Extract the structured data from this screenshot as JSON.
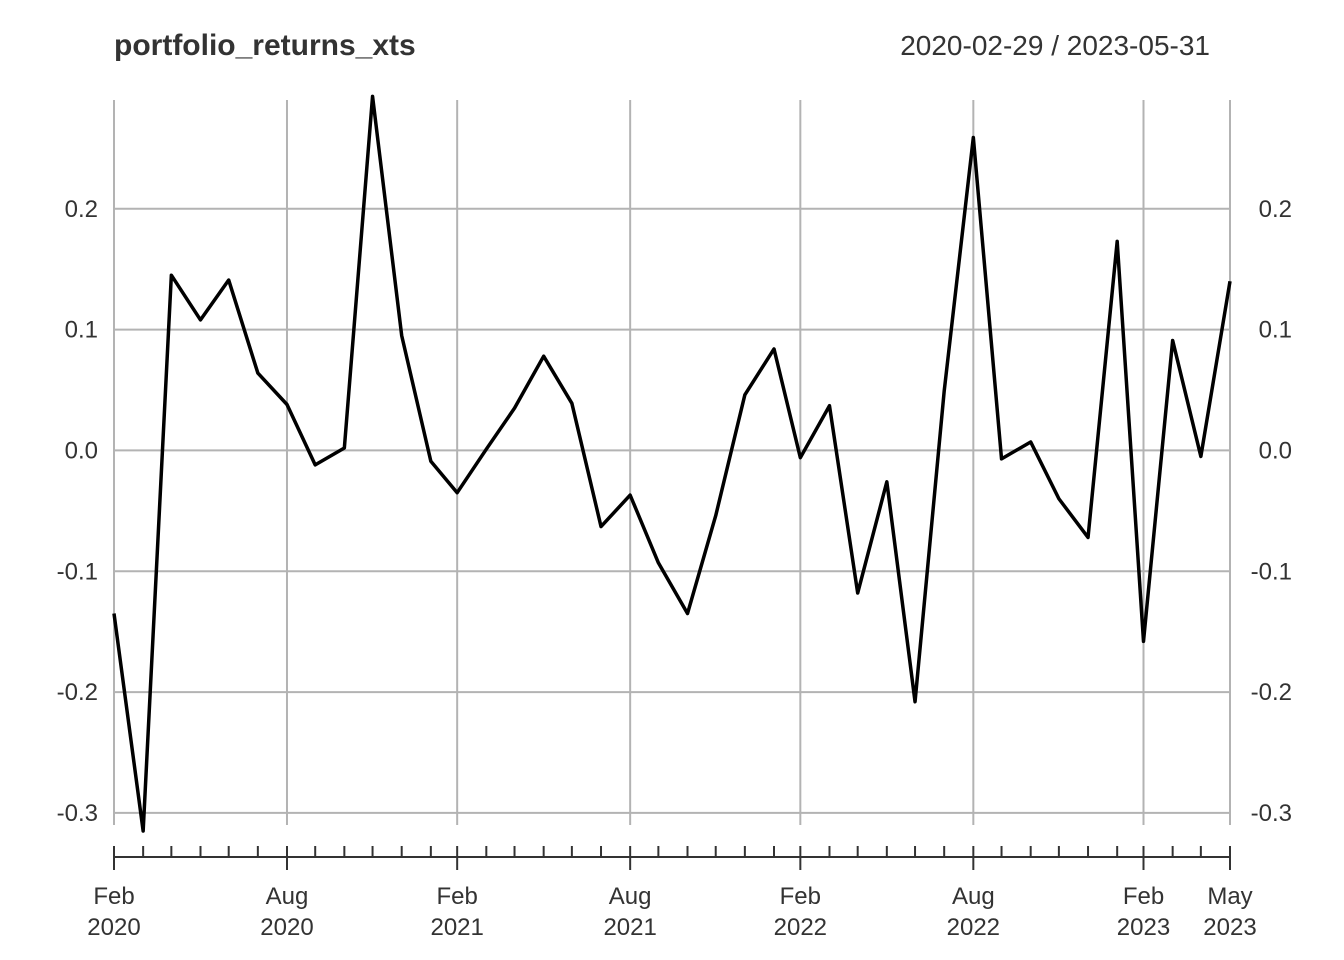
{
  "chart_data": {
    "type": "line",
    "title": "portfolio_returns_xts",
    "date_range": "2020-02-29 / 2023-05-31",
    "ylim": [
      -0.31,
      0.29
    ],
    "y_ticks": [
      -0.3,
      -0.2,
      -0.1,
      0.0,
      0.1,
      0.2
    ],
    "y_tick_labels": [
      "-0.3",
      "-0.2",
      "-0.1",
      "0.0",
      "0.1",
      "0.2"
    ],
    "x_major_ticks": [
      {
        "month": "Feb",
        "year": "2020",
        "date": "2020-02-29"
      },
      {
        "month": "Aug",
        "year": "2020",
        "date": "2020-08-31"
      },
      {
        "month": "Feb",
        "year": "2021",
        "date": "2021-02-28"
      },
      {
        "month": "Aug",
        "year": "2021",
        "date": "2021-08-31"
      },
      {
        "month": "Feb",
        "year": "2022",
        "date": "2022-02-28"
      },
      {
        "month": "Aug",
        "year": "2022",
        "date": "2022-08-31"
      },
      {
        "month": "Feb",
        "year": "2023",
        "date": "2023-02-28"
      },
      {
        "month": "May",
        "year": "2023",
        "date": "2023-05-31"
      }
    ],
    "grid": true,
    "y_axis_labels": "both sides",
    "line_color": "#000000",
    "grid_color": "#b3b3b3",
    "x": [
      "2020-02-29",
      "2020-03-31",
      "2020-04-30",
      "2020-05-31",
      "2020-06-30",
      "2020-07-31",
      "2020-08-31",
      "2020-09-30",
      "2020-10-31",
      "2020-11-30",
      "2020-12-31",
      "2021-01-31",
      "2021-02-28",
      "2021-03-31",
      "2021-04-30",
      "2021-05-31",
      "2021-06-30",
      "2021-07-31",
      "2021-08-31",
      "2021-09-30",
      "2021-10-31",
      "2021-11-30",
      "2021-12-31",
      "2022-01-31",
      "2022-02-28",
      "2022-03-31",
      "2022-04-30",
      "2022-05-31",
      "2022-06-30",
      "2022-07-31",
      "2022-08-31",
      "2022-09-30",
      "2022-10-31",
      "2022-11-30",
      "2022-12-31",
      "2023-01-31",
      "2023-02-28",
      "2023-03-31",
      "2023-04-30",
      "2023-05-31"
    ],
    "values": [
      -0.135,
      -0.315,
      0.145,
      0.108,
      0.141,
      0.064,
      0.038,
      -0.012,
      0.002,
      0.293,
      0.095,
      -0.009,
      -0.035,
      0.001,
      0.035,
      0.078,
      0.039,
      -0.063,
      -0.037,
      -0.093,
      -0.135,
      -0.054,
      0.046,
      0.084,
      -0.006,
      0.037,
      -0.118,
      -0.026,
      -0.208,
      0.049,
      0.259,
      -0.007,
      0.007,
      -0.04,
      -0.072,
      0.173,
      -0.158,
      0.091,
      -0.005,
      0.14
    ]
  }
}
